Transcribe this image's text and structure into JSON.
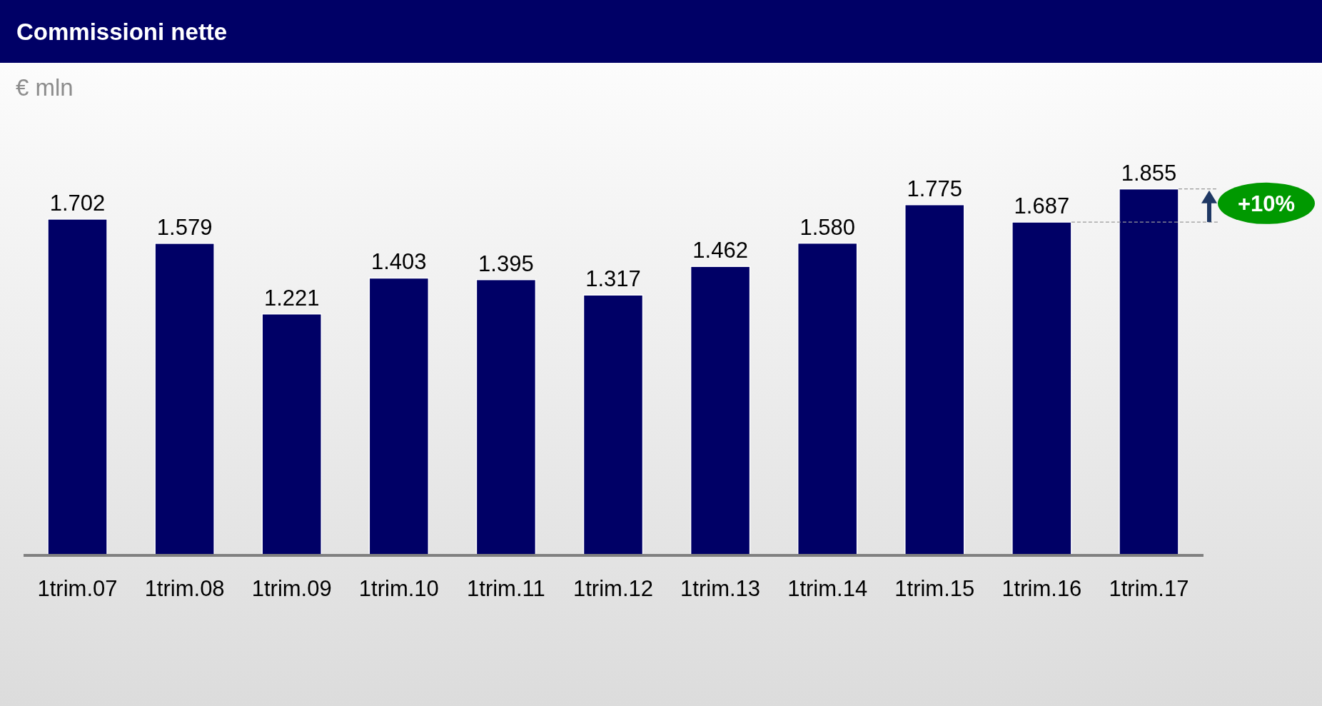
{
  "chart_data": {
    "type": "bar",
    "title": "Commissioni nette",
    "ylabel": "€ mln",
    "categories": [
      "1trim.07",
      "1trim.08",
      "1trim.09",
      "1trim.10",
      "1trim.11",
      "1trim.12",
      "1trim.13",
      "1trim.14",
      "1trim.15",
      "1trim.16",
      "1trim.17"
    ],
    "values": [
      1702,
      1579,
      1221,
      1403,
      1395,
      1317,
      1462,
      1580,
      1775,
      1687,
      1855
    ],
    "value_labels": [
      "1.702",
      "1.579",
      "1.221",
      "1.403",
      "1.395",
      "1.317",
      "1.462",
      "1.580",
      "1.775",
      "1.687",
      "1.855"
    ],
    "color": "#000066",
    "annotations": [
      "+10%"
    ]
  }
}
